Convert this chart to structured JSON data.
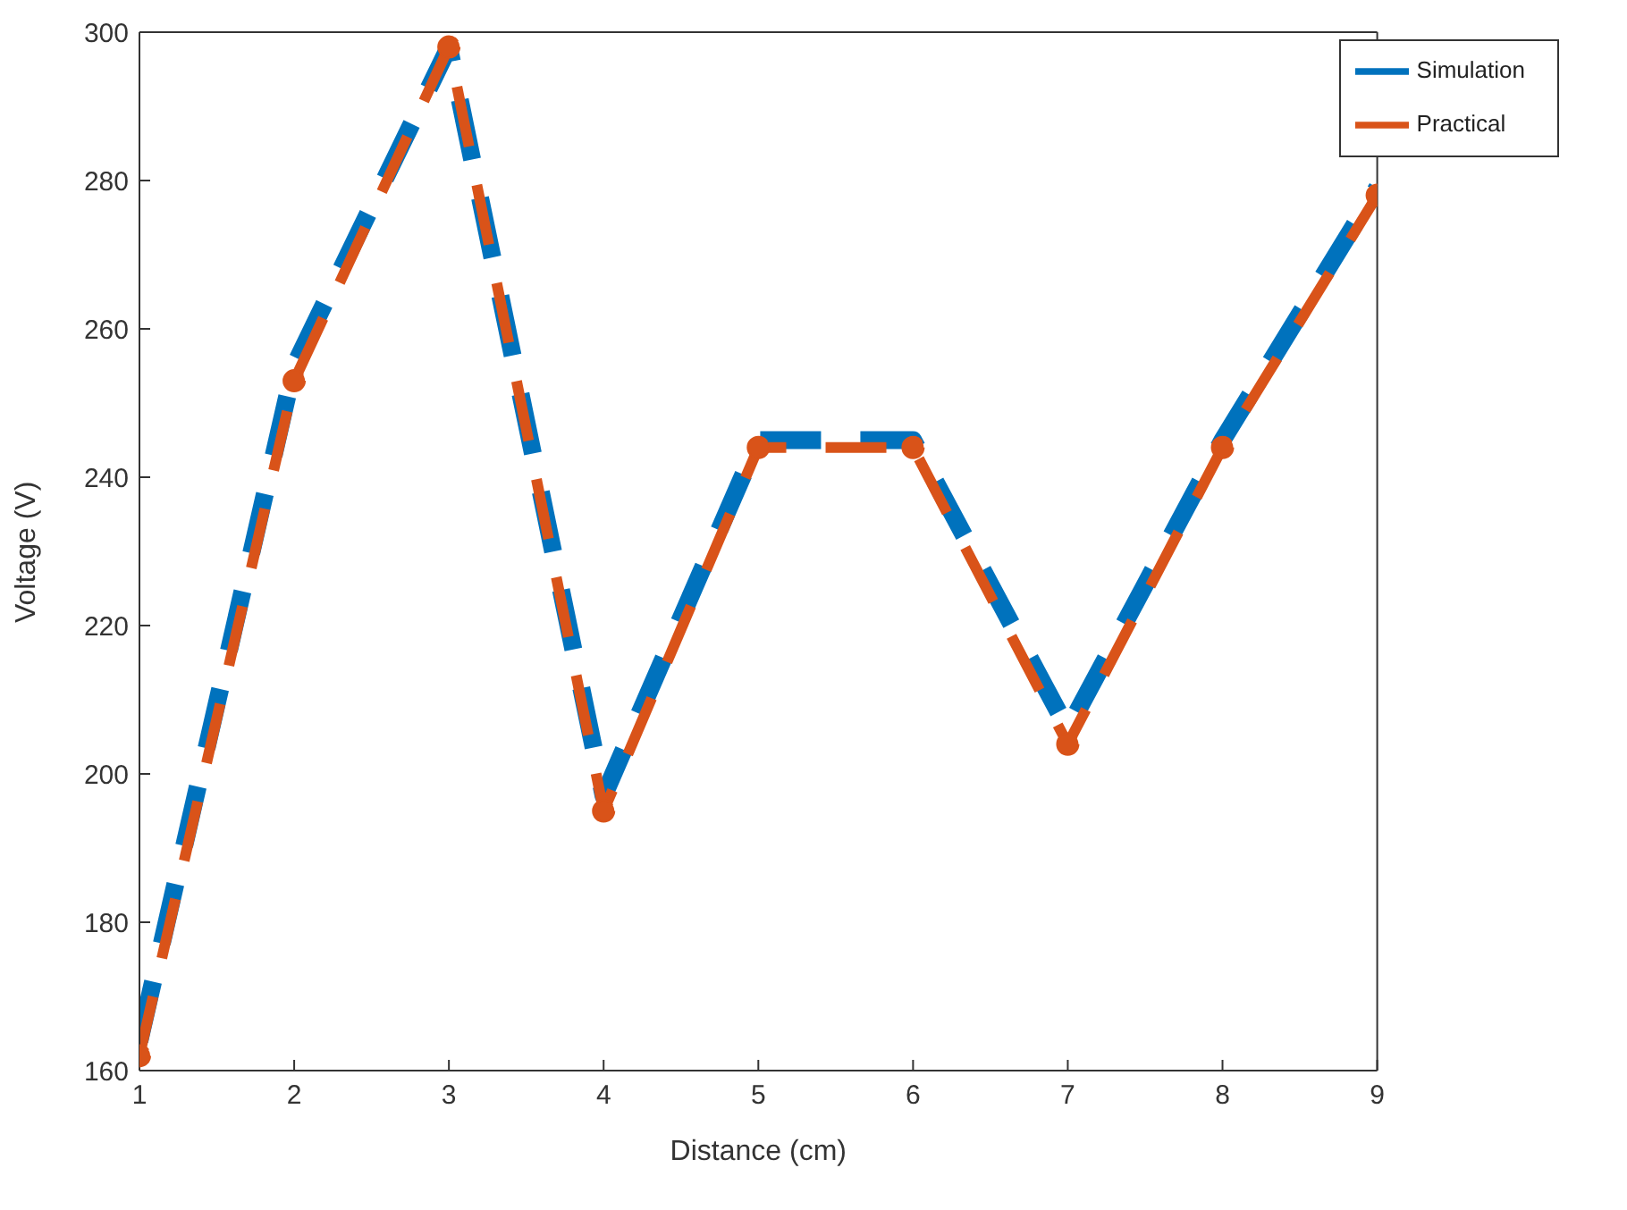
{
  "chart_data": {
    "type": "line",
    "xlabel": "Distance (cm)",
    "ylabel": "Voltage (V)",
    "x": [
      1,
      2,
      3,
      4,
      5,
      6,
      7,
      8,
      9
    ],
    "series": [
      {
        "name": "Simulation",
        "color": "#0072bd",
        "values": [
          164,
          255,
          298,
          197,
          245,
          245,
          206,
          245,
          279
        ],
        "marker": "none",
        "line_style": "dashed"
      },
      {
        "name": "Practical",
        "color": "#d95319",
        "values": [
          162,
          253,
          298,
          195,
          244,
          244,
          204,
          244,
          278
        ],
        "marker": "circle",
        "line_style": "dashed"
      }
    ],
    "xlim": [
      1,
      9
    ],
    "xticks": [
      1,
      2,
      3,
      4,
      5,
      6,
      7,
      8,
      9
    ],
    "ylim": [
      160,
      300
    ],
    "yticks": [
      160,
      180,
      200,
      220,
      240,
      260,
      280,
      300
    ],
    "grid": false,
    "legend": "top right"
  }
}
